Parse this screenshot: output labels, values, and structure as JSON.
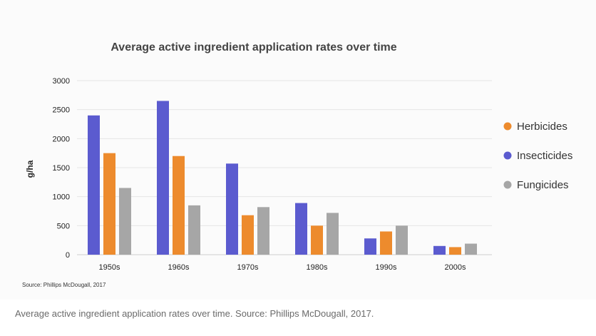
{
  "chart_data": {
    "type": "bar",
    "title": "Average active ingredient application rates over time",
    "xlabel": "",
    "ylabel": "g/ha",
    "ylim": [
      0,
      3000
    ],
    "yticks": [
      0,
      500,
      1000,
      1500,
      2000,
      2500,
      3000
    ],
    "categories": [
      "1950s",
      "1960s",
      "1970s",
      "1980s",
      "1990s",
      "2000s"
    ],
    "series": [
      {
        "name": "Insecticides",
        "color": "#5b5bcf",
        "values": [
          2400,
          2650,
          1570,
          890,
          280,
          150
        ]
      },
      {
        "name": "Herbicides",
        "color": "#ed8b2d",
        "values": [
          1750,
          1700,
          680,
          500,
          400,
          130
        ]
      },
      {
        "name": "Fungicides",
        "color": "#a6a6a6",
        "values": [
          1150,
          850,
          820,
          720,
          500,
          190
        ]
      }
    ],
    "legend_order": [
      "Herbicides",
      "Insecticides",
      "Fungicides"
    ],
    "legend_position": "right",
    "grid": true,
    "source_note": "Source: Phillips McDougall, 2017"
  },
  "caption": "Average active ingredient application rates over time. Source: Phillips McDougall, 2017."
}
